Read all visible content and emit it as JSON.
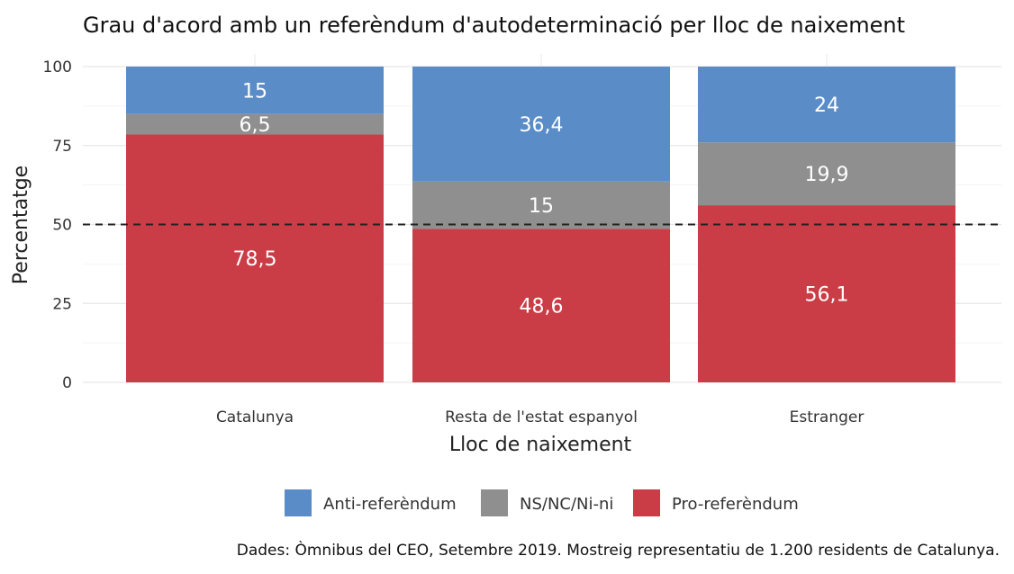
{
  "chart_data": {
    "type": "bar",
    "stacked": true,
    "title": "Grau d'acord amb un referèndum d'autodeterminació per lloc de naixement",
    "xlabel": "Lloc de naixement",
    "ylabel": "Percentatge",
    "ylim": [
      0,
      100
    ],
    "yticks": [
      "0",
      "25",
      "50",
      "75",
      "100"
    ],
    "categories": [
      "Catalunya",
      "Resta de l'estat espanyol",
      "Estranger"
    ],
    "series": [
      {
        "name": "Pro-referèndum",
        "color": "#cb3d46",
        "values": [
          78.5,
          48.6,
          56.1
        ],
        "labels": [
          "78,5",
          "48,6",
          "56,1"
        ]
      },
      {
        "name": "NS/NC/Ni-ni",
        "color": "#8f8f8f",
        "values": [
          6.5,
          15,
          19.9
        ],
        "labels": [
          "6,5",
          "15",
          "19,9"
        ]
      },
      {
        "name": "Anti-referèndum",
        "color": "#5a8dc8",
        "values": [
          15,
          36.4,
          24
        ],
        "labels": [
          "15",
          "36,4",
          "24"
        ]
      }
    ],
    "legend_order": [
      "Anti-referèndum",
      "NS/NC/Ni-ni",
      "Pro-referèndum"
    ],
    "legend_position": "bottom",
    "reference_line": {
      "value": 50,
      "style": "dashed"
    },
    "grid": true,
    "caption": "Dades: Òmnibus del CEO, Setembre 2019. Mostreig representatiu de 1.200 residents de Catalunya."
  }
}
